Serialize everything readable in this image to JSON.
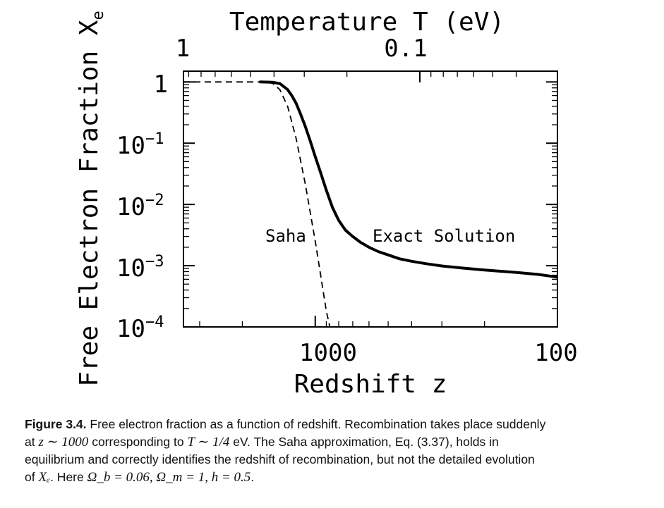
{
  "chart_data": {
    "type": "line",
    "title": "",
    "xlabel": "Redshift z",
    "x2label": "Temperature T (eV)",
    "ylabel": "Free Electron Fraction X",
    "ylabel_sub": "e",
    "x_scale": "log",
    "x_reversed": true,
    "xlim": [
      3500,
      100
    ],
    "y_scale": "log",
    "ylim": [
      0.0001,
      1.5
    ],
    "grid": false,
    "xticks": [
      {
        "value": 1000,
        "label": "1000"
      },
      {
        "value": 100,
        "label": "100"
      }
    ],
    "x2ticks": [
      {
        "value": 3700,
        "label": "1"
      },
      {
        "value": 370,
        "label": "0.1"
      }
    ],
    "yticks": [
      {
        "value": 1,
        "base": "1",
        "exp": ""
      },
      {
        "value": 0.1,
        "base": "10",
        "exp": "−1"
      },
      {
        "value": 0.01,
        "base": "10",
        "exp": "−2"
      },
      {
        "value": 0.001,
        "base": "10",
        "exp": "−3"
      },
      {
        "value": 0.0001,
        "base": "10",
        "exp": "−4"
      }
    ],
    "series": [
      {
        "name": "Exact Solution",
        "style": "solid",
        "x": [
          1700,
          1500,
          1400,
          1300,
          1250,
          1200,
          1150,
          1100,
          1050,
          1000,
          950,
          900,
          850,
          800,
          750,
          700,
          650,
          600,
          550,
          500,
          450,
          400,
          350,
          300,
          250,
          200,
          150,
          120,
          100
        ],
        "y": [
          1.0,
          0.99,
          0.94,
          0.75,
          0.6,
          0.45,
          0.3,
          0.19,
          0.11,
          0.06,
          0.033,
          0.017,
          0.009,
          0.0055,
          0.0038,
          0.003,
          0.0024,
          0.002,
          0.0017,
          0.0015,
          0.0013,
          0.00118,
          0.00108,
          0.00099,
          0.00092,
          0.00085,
          0.00078,
          0.00072,
          0.00065
        ]
      },
      {
        "name": "Saha",
        "style": "dashed",
        "x": [
          3500,
          2500,
          2000,
          1800,
          1700,
          1600,
          1500,
          1400,
          1300,
          1200,
          1100,
          1000,
          950,
          900,
          870
        ],
        "y": [
          1.0,
          1.0,
          1.0,
          1.0,
          1.0,
          0.99,
          0.95,
          0.75,
          0.4,
          0.12,
          0.022,
          0.0025,
          0.0007,
          0.00018,
          8e-05
        ]
      }
    ],
    "annotations": [
      "Saha",
      "Exact Solution"
    ]
  },
  "caption": {
    "label": "Figure 3.4.",
    "line1": "Free electron fraction as a function of redshift. Recombination takes place suddenly",
    "line2a": "at",
    "line2_math1": "z ∼ 1000",
    "line2b": "corresponding to",
    "line2_math2": "T ∼ 1/4",
    "line2c": "eV. The Saha approximation, Eq. (3.37), holds in",
    "line3": "equilibrium and correctly identifies the redshift of recombination, but not the detailed evolution",
    "line4a": "of",
    "line4_math1": "Xₑ",
    "line4b": ". Here",
    "line4_math2": "Ω_b = 0.06, Ω_m = 1, h = 0.5",
    "line4c": "."
  }
}
